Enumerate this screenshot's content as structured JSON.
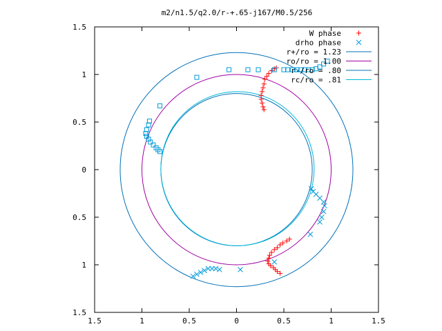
{
  "chart_data": {
    "type": "scatter",
    "title": "m2/n1.5/q2.0/r-+.65-j167/M0.5/256",
    "xlabel": "",
    "ylabel": "",
    "xlim": [
      -1.5,
      1.5
    ],
    "ylim": [
      -1.5,
      1.5
    ],
    "x_ticks": [
      -1.5,
      -1,
      -0.5,
      0,
      0.5,
      1,
      1.5
    ],
    "x_tick_labels": [
      "1.5",
      "1",
      "0.5",
      "0",
      "0.5",
      "1",
      "1.5"
    ],
    "y_ticks": [
      1.5,
      1,
      0.5,
      0,
      -0.5,
      -1,
      -1.5
    ],
    "y_tick_labels": [
      "1.5",
      "1",
      "0.5",
      "0",
      "0.5",
      "1",
      "1.5"
    ],
    "grid": false,
    "legend_position": "top-right",
    "series": [
      {
        "name": "W phase",
        "marker": "plus",
        "color": "#ff0000",
        "points": [
          [
            0.29,
            0.63
          ],
          [
            0.28,
            0.66
          ],
          [
            0.27,
            0.7
          ],
          [
            0.26,
            0.74
          ],
          [
            0.26,
            0.78
          ],
          [
            0.27,
            0.82
          ],
          [
            0.28,
            0.86
          ],
          [
            0.29,
            0.9
          ],
          [
            0.3,
            0.95
          ],
          [
            0.32,
            0.98
          ],
          [
            0.34,
            1.01
          ],
          [
            0.37,
            1.04
          ],
          [
            0.4,
            1.06
          ],
          [
            0.42,
            1.07
          ],
          [
            0.56,
            -0.73
          ],
          [
            0.53,
            -0.75
          ],
          [
            0.49,
            -0.77
          ],
          [
            0.46,
            -0.79
          ],
          [
            0.43,
            -0.82
          ],
          [
            0.4,
            -0.84
          ],
          [
            0.37,
            -0.87
          ],
          [
            0.35,
            -0.9
          ],
          [
            0.34,
            -0.93
          ],
          [
            0.33,
            -0.96
          ],
          [
            0.34,
            -0.99
          ],
          [
            0.36,
            -1.01
          ],
          [
            0.39,
            -1.03
          ],
          [
            0.41,
            -1.05
          ],
          [
            0.43,
            -1.07
          ],
          [
            0.46,
            -1.09
          ]
        ]
      },
      {
        "name": "drho phase",
        "marker": "cross",
        "color": "#009ad9",
        "points": [
          [
            0.4,
            -0.97
          ],
          [
            0.78,
            -0.68
          ],
          [
            0.04,
            -1.05
          ],
          [
            -0.18,
            -1.05
          ],
          [
            -0.22,
            -1.04
          ],
          [
            -0.26,
            -1.04
          ],
          [
            -0.3,
            -1.04
          ],
          [
            -0.34,
            -1.06
          ],
          [
            -0.38,
            -1.08
          ],
          [
            -0.42,
            -1.1
          ],
          [
            -0.46,
            -1.12
          ],
          [
            0.88,
            -0.55
          ],
          [
            0.9,
            -0.5
          ],
          [
            0.92,
            -0.44
          ],
          [
            0.93,
            -0.38
          ],
          [
            0.92,
            -0.34
          ],
          [
            0.88,
            -0.3
          ],
          [
            0.84,
            -0.26
          ],
          [
            0.81,
            -0.23
          ],
          [
            0.79,
            -0.2
          ]
        ]
      },
      {
        "name": "drho phase (squares)",
        "marker": "square",
        "color": "#009ad9",
        "points": [
          [
            0.96,
            1.14
          ],
          [
            0.92,
            1.11
          ],
          [
            0.88,
            1.08
          ],
          [
            0.84,
            1.06
          ],
          [
            0.8,
            1.05
          ],
          [
            0.76,
            1.05
          ],
          [
            0.72,
            1.05
          ],
          [
            0.68,
            1.05
          ],
          [
            0.64,
            1.05
          ],
          [
            0.59,
            1.05
          ],
          [
            0.54,
            1.05
          ],
          [
            0.5,
            1.05
          ],
          [
            0.4,
            1.05
          ],
          [
            0.23,
            1.05
          ],
          [
            0.12,
            1.05
          ],
          [
            -0.08,
            1.05
          ],
          [
            -0.42,
            0.97
          ],
          [
            -0.81,
            0.67
          ],
          [
            -0.92,
            0.51
          ],
          [
            -0.93,
            0.47
          ],
          [
            -0.95,
            0.42
          ],
          [
            -0.96,
            0.38
          ],
          [
            -0.95,
            0.35
          ],
          [
            -0.93,
            0.32
          ],
          [
            -0.91,
            0.29
          ],
          [
            -0.88,
            0.26
          ],
          [
            -0.85,
            0.23
          ],
          [
            -0.83,
            0.21
          ],
          [
            -0.81,
            0.19
          ]
        ]
      }
    ],
    "circles": [
      {
        "name": "r+/ro = 1.23",
        "r": 1.23,
        "color": "#0070b8"
      },
      {
        "name": "ro/ro = 1.00",
        "r": 1.0,
        "color": "#a000a0"
      },
      {
        "name": "r-/ro = .80",
        "r": 0.8,
        "color": "#0070b8"
      },
      {
        "name": "rc/ro = .81",
        "r": 0.81,
        "color": "#00b8d8"
      }
    ]
  }
}
